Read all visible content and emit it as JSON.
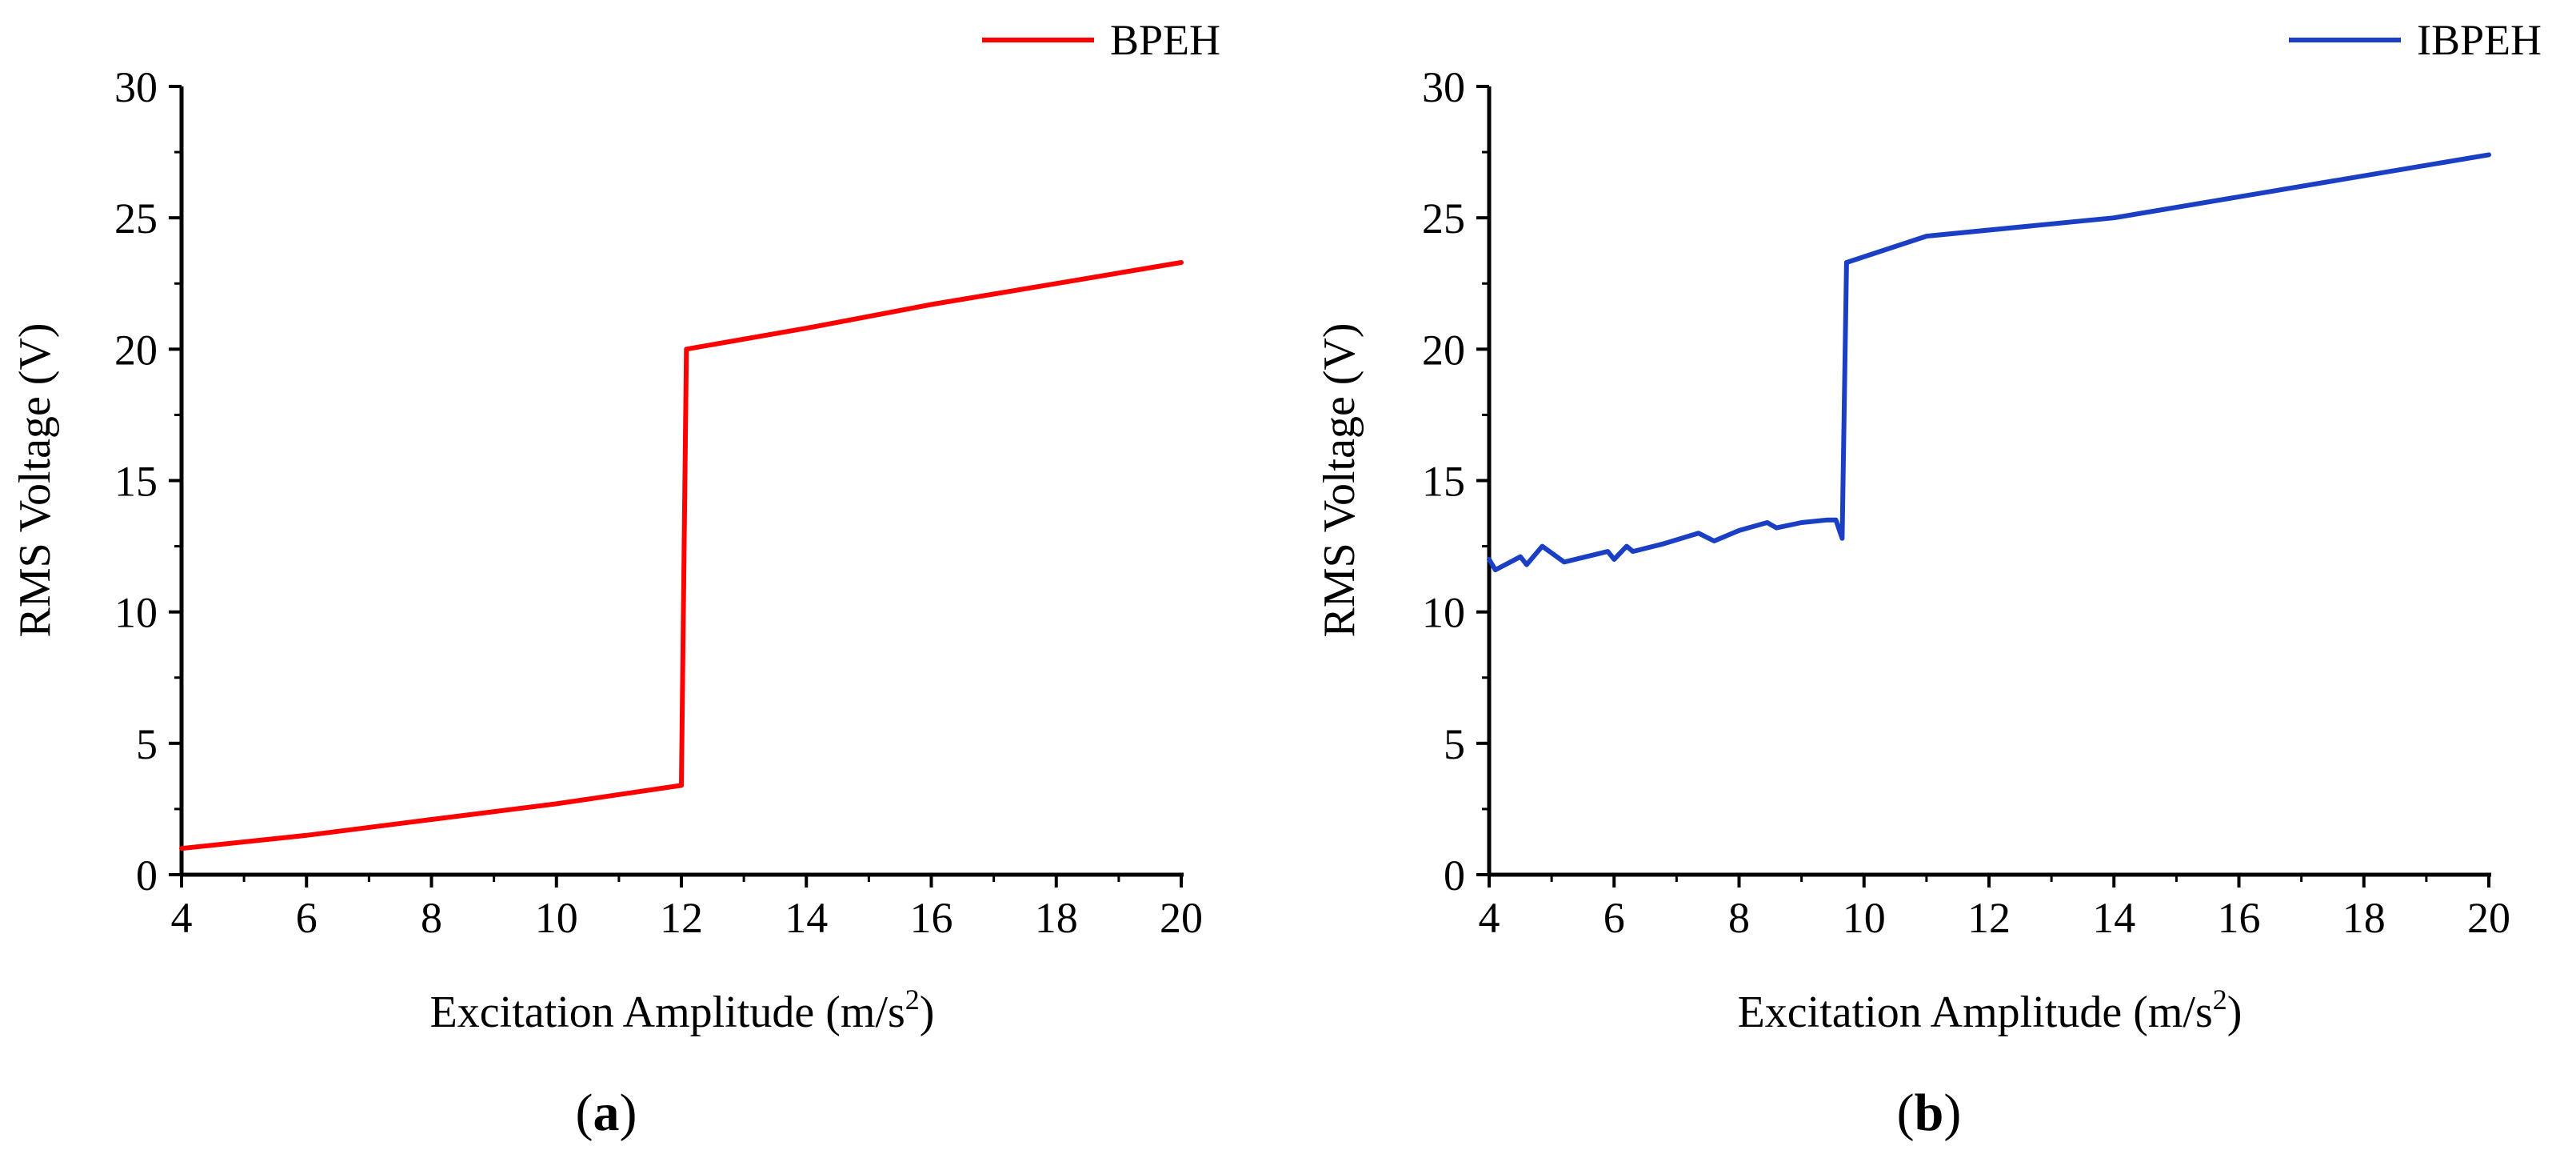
{
  "chart_data": [
    {
      "type": "line",
      "panel_label": "a",
      "xlabel": "Excitation Amplitude (m/s",
      "xlabel_superscript": "2",
      "xlabel_suffix": ")",
      "ylabel": "RMS Voltage (V)",
      "xlim": [
        4,
        20
      ],
      "ylim": [
        0,
        30
      ],
      "xticks": [
        "4",
        "6",
        "8",
        "10",
        "12",
        "14",
        "16",
        "18",
        "20"
      ],
      "yticks": [
        "0",
        "5",
        "10",
        "15",
        "20",
        "25",
        "30"
      ],
      "legend_position": "top-right",
      "series": [
        {
          "name": "BPEH",
          "color": "#ff0000",
          "x": [
            4,
            6,
            8,
            10,
            12,
            12.08,
            14,
            16,
            18,
            20
          ],
          "y": [
            1.0,
            1.5,
            2.1,
            2.7,
            3.4,
            20.0,
            20.8,
            21.7,
            22.5,
            23.3
          ]
        }
      ]
    },
    {
      "type": "line",
      "panel_label": "b",
      "xlabel": "Excitation Amplitude (m/s",
      "xlabel_superscript": "2",
      "xlabel_suffix": ")",
      "ylabel": "RMS Voltage (V)",
      "xlim": [
        4,
        20
      ],
      "ylim": [
        0,
        30
      ],
      "xticks": [
        "4",
        "6",
        "8",
        "10",
        "12",
        "14",
        "16",
        "18",
        "20"
      ],
      "yticks": [
        "0",
        "5",
        "10",
        "15",
        "20",
        "25",
        "30"
      ],
      "legend_position": "top-right",
      "series": [
        {
          "name": "IBPEH",
          "color": "#1a3fc4",
          "x": [
            4.0,
            4.1,
            4.5,
            4.6,
            4.85,
            5.2,
            5.9,
            6.0,
            6.2,
            6.3,
            6.8,
            7.35,
            7.6,
            8.0,
            8.45,
            8.6,
            9.0,
            9.4,
            9.55,
            9.65,
            9.72,
            11.0,
            14.0,
            20.0
          ],
          "y": [
            12.0,
            11.6,
            12.1,
            11.8,
            12.5,
            11.9,
            12.3,
            12.0,
            12.5,
            12.3,
            12.6,
            13.0,
            12.7,
            13.1,
            13.4,
            13.2,
            13.4,
            13.5,
            13.5,
            12.8,
            23.3,
            24.3,
            25.0,
            27.4
          ]
        }
      ]
    }
  ]
}
